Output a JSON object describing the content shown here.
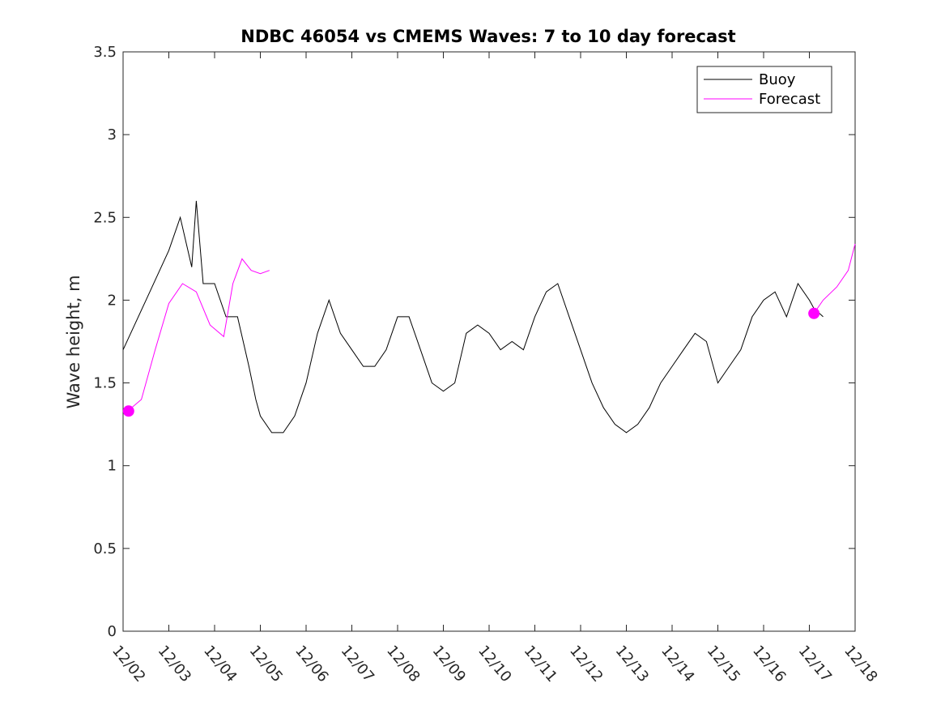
{
  "chart_data": {
    "type": "line",
    "title": "NDBC 46054 vs CMEMS Waves: 7 to 10 day forecast",
    "xlabel": "",
    "ylabel": "Wave height, m",
    "x_ticks": [
      "12/02",
      "12/03",
      "12/04",
      "12/05",
      "12/06",
      "12/07",
      "12/08",
      "12/09",
      "12/10",
      "12/11",
      "12/12",
      "12/13",
      "12/14",
      "12/15",
      "12/16",
      "12/17",
      "12/18"
    ],
    "xlim_days": [
      0,
      16
    ],
    "ylim": [
      0,
      3.5
    ],
    "y_ticks": [
      "0",
      "0.5",
      "1",
      "1.5",
      "2",
      "2.5",
      "3",
      "3.5"
    ],
    "grid": false,
    "legend_position": "top-right",
    "series": [
      {
        "name": "Buoy",
        "color": "#000000",
        "x_days": [
          0.0,
          0.5,
          1.0,
          1.25,
          1.5,
          1.6,
          1.75,
          2.0,
          2.25,
          2.5,
          2.75,
          2.9,
          3.0,
          3.25,
          3.5,
          3.75,
          4.0,
          4.25,
          4.5,
          4.75,
          5.0,
          5.25,
          5.5,
          5.75,
          6.0,
          6.25,
          6.5,
          6.75,
          7.0,
          7.25,
          7.5,
          7.75,
          8.0,
          8.25,
          8.5,
          8.75,
          9.0,
          9.25,
          9.5,
          9.75,
          10.0,
          10.25,
          10.5,
          10.75,
          11.0,
          11.25,
          11.5,
          11.75,
          12.0,
          12.25,
          12.5,
          12.75,
          13.0,
          13.25,
          13.5,
          13.75,
          14.0,
          14.25,
          14.5,
          14.75,
          15.0,
          15.1,
          15.3
        ],
        "values": [
          1.7,
          2.0,
          2.3,
          2.5,
          2.2,
          2.6,
          2.1,
          2.1,
          1.9,
          1.9,
          1.6,
          1.4,
          1.3,
          1.2,
          1.2,
          1.3,
          1.5,
          1.8,
          2.0,
          1.8,
          1.7,
          1.6,
          1.6,
          1.7,
          1.9,
          1.9,
          1.7,
          1.5,
          1.45,
          1.5,
          1.8,
          1.85,
          1.8,
          1.7,
          1.75,
          1.7,
          1.9,
          2.05,
          2.1,
          1.9,
          1.7,
          1.5,
          1.35,
          1.25,
          1.2,
          1.25,
          1.35,
          1.5,
          1.6,
          1.7,
          1.8,
          1.75,
          1.5,
          1.6,
          1.7,
          1.9,
          2.0,
          2.05,
          1.9,
          2.1,
          2.0,
          1.95,
          1.9
        ],
        "markers": [
          {
            "x_day": 0.0,
            "value": 1.7
          }
        ]
      },
      {
        "name": "Forecast",
        "color": "#ff00ff",
        "x_days": [
          0.1,
          0.4,
          0.7,
          1.0,
          1.3,
          1.6,
          1.9,
          2.2,
          2.4,
          2.6,
          2.8,
          3.0,
          3.2
        ],
        "values": [
          1.33,
          1.4,
          1.7,
          1.98,
          2.1,
          2.05,
          1.85,
          1.78,
          2.1,
          2.25,
          2.18,
          2.16,
          2.18
        ],
        "markers": [
          {
            "x_day": 0.12,
            "value": 1.33
          }
        ]
      },
      {
        "name": "Forecast",
        "color": "#ff00ff",
        "x_days": [
          15.1,
          15.3,
          15.6,
          15.85,
          16.0
        ],
        "values": [
          1.92,
          2.0,
          2.08,
          2.18,
          2.34
        ],
        "markers": [
          {
            "x_day": 15.1,
            "value": 1.92
          }
        ]
      }
    ]
  },
  "legend": {
    "items": [
      {
        "label": "Buoy",
        "color": "#000000"
      },
      {
        "label": "Forecast",
        "color": "#ff00ff"
      }
    ]
  }
}
